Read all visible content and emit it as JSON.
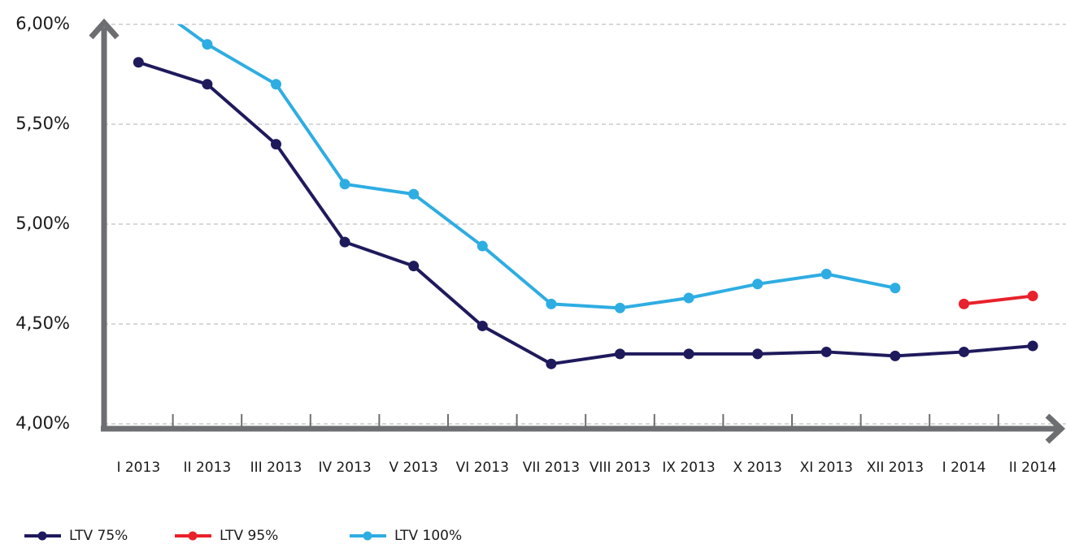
{
  "chart_data": {
    "type": "line",
    "categories": [
      "I 2013",
      "II 2013",
      "III 2013",
      "IV 2013",
      "V 2013",
      "VI 2013",
      "VII 2013",
      "VIII 2013",
      "IX 2013",
      "X 2013",
      "XI 2013",
      "XII 2013",
      "I 2014",
      "II 2014"
    ],
    "series": [
      {
        "name": "LTV 75%",
        "color": "#1f1a5c",
        "values": [
          5.81,
          5.7,
          5.4,
          4.91,
          4.79,
          4.49,
          4.3,
          4.35,
          4.35,
          4.35,
          4.36,
          4.34,
          4.36,
          4.39
        ]
      },
      {
        "name": "LTV 95%",
        "color": "#e8212b",
        "values": [
          null,
          null,
          null,
          null,
          null,
          null,
          null,
          null,
          null,
          null,
          null,
          null,
          4.6,
          4.64
        ]
      },
      {
        "name": "LTV 100%",
        "color": "#2eade2",
        "values": [
          6.15,
          5.9,
          5.7,
          5.2,
          5.15,
          4.89,
          4.6,
          4.58,
          4.63,
          4.7,
          4.75,
          4.68,
          null,
          null
        ]
      }
    ],
    "ylim": [
      4,
      6
    ],
    "yticks": [
      {
        "value": 4,
        "label": "4,00%"
      },
      {
        "value": 4.5,
        "label": "4,50%"
      },
      {
        "value": 5,
        "label": "5,00%"
      },
      {
        "value": 5.5,
        "label": "5,50%"
      },
      {
        "value": 6,
        "label": "6,00%"
      }
    ],
    "grid": true
  }
}
